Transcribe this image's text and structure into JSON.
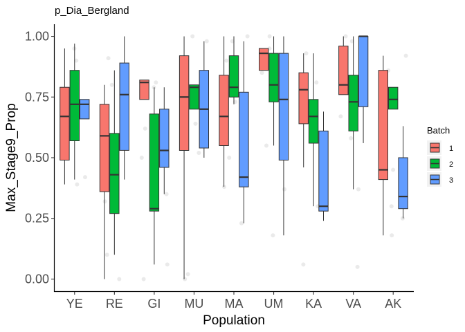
{
  "chart_data": {
    "type": "boxplot",
    "title": "p_Dia_Bergland",
    "xlabel": "Population",
    "ylabel": "Max_Stage9_Prop",
    "ylim": [
      -0.05,
      1.05
    ],
    "yticks": [
      0.0,
      0.25,
      0.5,
      0.75,
      1.0
    ],
    "ytick_labels": [
      "0.00",
      "0.25",
      "0.50",
      "0.75",
      "1.00"
    ],
    "categories": [
      "YE",
      "RE",
      "GI",
      "MU",
      "MA",
      "UM",
      "KA",
      "VA",
      "AK"
    ],
    "grid": false,
    "legend": {
      "title": "Batch",
      "position": "right",
      "entries": [
        {
          "label": "1",
          "color": "#F8766D"
        },
        {
          "label": "2",
          "color": "#00BA38"
        },
        {
          "label": "3",
          "color": "#619CFF"
        }
      ]
    },
    "series": [
      {
        "name": "1",
        "color": "#F8766D",
        "boxes": [
          {
            "category": "YE",
            "whisker_low": 0.39,
            "q1": 0.49,
            "median": 0.67,
            "q3": 0.79,
            "whisker_high": 0.95
          },
          {
            "category": "RE",
            "whisker_low": 0.0,
            "q1": 0.36,
            "median": 0.59,
            "q3": 0.72,
            "whisker_high": 0.8
          },
          {
            "category": "GI",
            "whisker_low": 0.74,
            "q1": 0.74,
            "median": 0.81,
            "q3": 0.82,
            "whisker_high": 0.82
          },
          {
            "category": "MU",
            "whisker_low": 0.0,
            "q1": 0.53,
            "median": 0.75,
            "q3": 0.92,
            "whisker_high": 1.0
          },
          {
            "category": "MA",
            "whisker_low": 0.38,
            "q1": 0.55,
            "median": 0.67,
            "q3": 0.84,
            "whisker_high": 1.0
          },
          {
            "category": "UM",
            "whisker_low": 0.86,
            "q1": 0.86,
            "median": 0.93,
            "q3": 0.95,
            "whisker_high": 0.95
          },
          {
            "category": "KA",
            "whisker_low": 0.46,
            "q1": 0.64,
            "median": 0.78,
            "q3": 0.85,
            "whisker_high": 0.93
          },
          {
            "category": "VA",
            "whisker_low": 0.76,
            "q1": 0.76,
            "median": 0.8,
            "q3": 0.96,
            "whisker_high": 1.0
          },
          {
            "category": "AK",
            "whisker_low": 0.18,
            "q1": 0.41,
            "median": 0.45,
            "q3": 0.86,
            "whisker_high": 0.92
          }
        ]
      },
      {
        "name": "2",
        "color": "#00BA38",
        "boxes": [
          {
            "category": "YE",
            "whisker_low": 0.41,
            "q1": 0.57,
            "median": 0.72,
            "q3": 0.86,
            "whisker_high": 0.97
          },
          {
            "category": "RE",
            "whisker_low": 0.1,
            "q1": 0.27,
            "median": 0.43,
            "q3": 0.6,
            "whisker_high": 0.86
          },
          {
            "category": "GI",
            "whisker_low": 0.06,
            "q1": 0.28,
            "median": 0.29,
            "q3": 0.68,
            "whisker_high": 0.79
          },
          {
            "category": "MU",
            "whisker_low": 0.7,
            "q1": 0.7,
            "median": 0.79,
            "q3": 0.8,
            "whisker_high": 0.8
          },
          {
            "category": "MA",
            "whisker_low": 0.72,
            "q1": 0.75,
            "median": 0.79,
            "q3": 0.92,
            "whisker_high": 1.0
          },
          {
            "category": "UM",
            "whisker_low": 0.55,
            "q1": 0.73,
            "median": 0.8,
            "q3": 0.93,
            "whisker_high": 1.0
          },
          {
            "category": "KA",
            "whisker_low": 0.3,
            "q1": 0.56,
            "median": 0.67,
            "q3": 0.74,
            "whisker_high": 0.93
          },
          {
            "category": "VA",
            "whisker_low": 0.37,
            "q1": 0.61,
            "median": 0.73,
            "q3": 0.84,
            "whisker_high": 1.0
          },
          {
            "category": "AK",
            "whisker_low": 0.7,
            "q1": 0.7,
            "median": 0.74,
            "q3": 0.79,
            "whisker_high": 0.79
          }
        ]
      },
      {
        "name": "3",
        "color": "#619CFF",
        "boxes": [
          {
            "category": "YE",
            "whisker_low": 0.66,
            "q1": 0.66,
            "median": 0.72,
            "q3": 0.74,
            "whisker_high": 0.74
          },
          {
            "category": "RE",
            "whisker_low": 0.41,
            "q1": 0.53,
            "median": 0.76,
            "q3": 0.89,
            "whisker_high": 1.0
          },
          {
            "category": "GI",
            "whisker_low": 0.35,
            "q1": 0.46,
            "median": 0.53,
            "q3": 0.7,
            "whisker_high": 0.79
          },
          {
            "category": "MU",
            "whisker_low": 0.5,
            "q1": 0.54,
            "median": 0.7,
            "q3": 0.86,
            "whisker_high": 0.98
          },
          {
            "category": "MA",
            "whisker_low": 0.23,
            "q1": 0.38,
            "median": 0.42,
            "q3": 0.77,
            "whisker_high": 0.98
          },
          {
            "category": "UM",
            "whisker_low": 0.18,
            "q1": 0.49,
            "median": 0.74,
            "q3": 0.93,
            "whisker_high": 1.0
          },
          {
            "category": "KA",
            "whisker_low": 0.24,
            "q1": 0.28,
            "median": 0.3,
            "q3": 0.61,
            "whisker_high": 0.69
          },
          {
            "category": "VA",
            "whisker_low": 0.56,
            "q1": 0.71,
            "median": 1.0,
            "q3": 1.0,
            "whisker_high": 1.0
          },
          {
            "category": "AK",
            "whisker_low": 0.25,
            "q1": 0.29,
            "median": 0.34,
            "q3": 0.5,
            "whisker_high": 0.63
          }
        ]
      }
    ],
    "jitter_points": [
      {
        "category": "YE",
        "y": 0.95
      },
      {
        "category": "YE",
        "y": 0.9
      },
      {
        "category": "YE",
        "y": 0.74
      },
      {
        "category": "YE",
        "y": 0.72
      },
      {
        "category": "YE",
        "y": 0.69
      },
      {
        "category": "YE",
        "y": 0.58
      },
      {
        "category": "YE",
        "y": 0.52
      },
      {
        "category": "YE",
        "y": 0.42
      },
      {
        "category": "YE",
        "y": 0.39
      },
      {
        "category": "RE",
        "y": 0.8
      },
      {
        "category": "RE",
        "y": 0.91
      },
      {
        "category": "RE",
        "y": 0.74
      },
      {
        "category": "RE",
        "y": 0.56
      },
      {
        "category": "RE",
        "y": 0.47
      },
      {
        "category": "RE",
        "y": 0.41
      },
      {
        "category": "RE",
        "y": 0.1
      },
      {
        "category": "RE",
        "y": 0.0
      },
      {
        "category": "RE",
        "y": 0.32
      },
      {
        "category": "GI",
        "y": 0.81
      },
      {
        "category": "GI",
        "y": 0.79
      },
      {
        "category": "GI",
        "y": 0.62
      },
      {
        "category": "GI",
        "y": 0.5
      },
      {
        "category": "GI",
        "y": 0.35
      },
      {
        "category": "GI",
        "y": 0.06
      },
      {
        "category": "GI",
        "y": 0.0
      },
      {
        "category": "MU",
        "y": 1.0
      },
      {
        "category": "MU",
        "y": 0.98
      },
      {
        "category": "MU",
        "y": 0.8
      },
      {
        "category": "MU",
        "y": 0.72
      },
      {
        "category": "MU",
        "y": 0.64
      },
      {
        "category": "MU",
        "y": 0.52
      },
      {
        "category": "MU",
        "y": 0.02
      },
      {
        "category": "MU",
        "y": 0.0
      },
      {
        "category": "MA",
        "y": 1.0
      },
      {
        "category": "MA",
        "y": 0.98
      },
      {
        "category": "MA",
        "y": 0.9
      },
      {
        "category": "MA",
        "y": 0.73
      },
      {
        "category": "MA",
        "y": 0.5
      },
      {
        "category": "MA",
        "y": 0.38
      },
      {
        "category": "MA",
        "y": 0.23
      },
      {
        "category": "UM",
        "y": 1.0
      },
      {
        "category": "UM",
        "y": 0.95
      },
      {
        "category": "UM",
        "y": 0.85
      },
      {
        "category": "UM",
        "y": 0.61
      },
      {
        "category": "UM",
        "y": 0.55
      },
      {
        "category": "UM",
        "y": 0.37
      },
      {
        "category": "UM",
        "y": 0.18
      },
      {
        "category": "KA",
        "y": 0.93
      },
      {
        "category": "KA",
        "y": 0.81
      },
      {
        "category": "KA",
        "y": 0.6
      },
      {
        "category": "KA",
        "y": 0.46
      },
      {
        "category": "KA",
        "y": 0.3
      },
      {
        "category": "KA",
        "y": 0.06
      },
      {
        "category": "VA",
        "y": 1.0
      },
      {
        "category": "VA",
        "y": 0.98
      },
      {
        "category": "VA",
        "y": 0.84
      },
      {
        "category": "VA",
        "y": 0.67
      },
      {
        "category": "VA",
        "y": 0.58
      },
      {
        "category": "VA",
        "y": 0.37
      },
      {
        "category": "VA",
        "y": 0.05
      },
      {
        "category": "AK",
        "y": 0.92
      },
      {
        "category": "AK",
        "y": 0.86
      },
      {
        "category": "AK",
        "y": 0.74
      },
      {
        "category": "AK",
        "y": 0.45
      },
      {
        "category": "AK",
        "y": 0.3
      },
      {
        "category": "AK",
        "y": 0.25
      },
      {
        "category": "AK",
        "y": 0.18
      }
    ]
  }
}
